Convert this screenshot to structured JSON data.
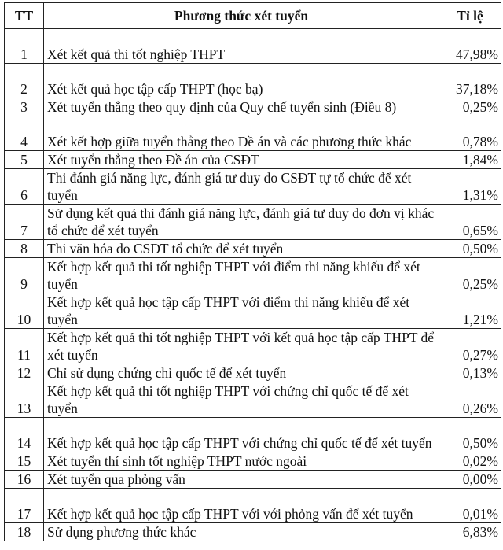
{
  "table": {
    "headers": [
      "TT",
      "Phương thức xét tuyển",
      "Tỉ lệ"
    ],
    "rows": [
      {
        "tt": "1",
        "method": "Xét kết quả thi tốt nghiệp THPT",
        "rate": "47,98%"
      },
      {
        "tt": "2",
        "method": "Xét kết quả học tập cấp THPT (học bạ)",
        "rate": "37,18%"
      },
      {
        "tt": "3",
        "method": "Xét tuyển thẳng theo quy định của Quy chế tuyển sinh (Điều 8)",
        "rate": "0,25%"
      },
      {
        "tt": "4",
        "method": "Xét kết hợp giữa tuyển thẳng theo Đề án và các phương thức khác",
        "rate": "0,78%"
      },
      {
        "tt": "5",
        "method": "Xét tuyển thẳng theo Đề án của CSĐT",
        "rate": "1,84%"
      },
      {
        "tt": "6",
        "method": "Thi đánh giá năng lực, đánh giá tư duy do CSĐT tự tổ chức để xét tuyển",
        "rate": "1,31%"
      },
      {
        "tt": "7",
        "method": "Sử dụng kết quả thi đánh giá năng lực, đánh giá tư duy do đơn vị khác tổ chức để xét tuyển",
        "rate": "0,65%"
      },
      {
        "tt": "8",
        "method": "Thi văn hóa do CSĐT tổ chức để xét tuyển",
        "rate": "0,50%"
      },
      {
        "tt": "9",
        "method": "Kết hợp kết quả thi tốt nghiệp THPT với điểm thi năng khiếu để xét tuyển",
        "rate": "0,25%"
      },
      {
        "tt": "10",
        "method": "Kết hợp kết quả học tập cấp THPT với điểm thi năng khiếu để xét tuyển",
        "rate": "1,21%"
      },
      {
        "tt": "11",
        "method": "Kết hợp kết quả thi tốt nghiệp THPT với kết quả học tập cấp THPT để xét tuyển",
        "rate": "0,27%"
      },
      {
        "tt": "12",
        "method": "Chỉ sử dụng chứng chỉ quốc tế để xét tuyển",
        "rate": "0,13%"
      },
      {
        "tt": "13",
        "method": "Kết hợp kết quả thi tốt nghiệp THPT với chứng chỉ quốc tế để xét tuyển",
        "rate": "0,26%"
      },
      {
        "tt": "14",
        "method": "Kết hợp kết quả học tập cấp THPT với chứng chỉ quốc tế để xét tuyển",
        "rate": "0,50%"
      },
      {
        "tt": "15",
        "method": "Xét tuyển thí sinh tốt nghiệp THPT nước ngoài",
        "rate": "0,02%"
      },
      {
        "tt": "16",
        "method": "Xét tuyển qua phỏng vấn",
        "rate": "0,00%"
      },
      {
        "tt": "17",
        "method": "Kết hợp kết quả học tập cấp THPT với với phỏng vấn để xét tuyển",
        "rate": "0,01%"
      },
      {
        "tt": "18",
        "method": "Sử dụng phương thức khác",
        "rate": "6,83%"
      }
    ]
  }
}
